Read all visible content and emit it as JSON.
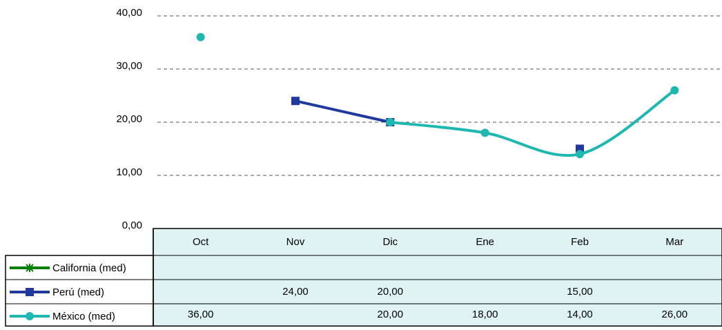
{
  "chart_data": {
    "type": "line",
    "categories": [
      "Oct",
      "Nov",
      "Dic",
      "Ene",
      "Feb",
      "Mar"
    ],
    "series": [
      {
        "name": "California (med)",
        "color": "#008000",
        "marker": "star",
        "values": [
          null,
          null,
          null,
          null,
          null,
          null
        ],
        "value_labels": [
          null,
          null,
          null,
          null,
          null,
          null
        ]
      },
      {
        "name": "Perú (med)",
        "color": "#1f3a9c",
        "marker": "square",
        "smooth": false,
        "values": [
          null,
          24,
          20,
          null,
          15,
          null
        ],
        "value_labels": [
          null,
          "24,00",
          "20,00",
          null,
          "15,00",
          null
        ]
      },
      {
        "name": "México (med)",
        "color": "#1fb8b0",
        "marker": "circle",
        "smooth": true,
        "values": [
          36,
          null,
          20,
          18,
          14,
          26
        ],
        "value_labels": [
          "36,00",
          null,
          "20,00",
          "18,00",
          "14,00",
          "26,00"
        ]
      }
    ],
    "ylim": [
      0,
      40
    ],
    "yticks": [
      {
        "value": 0,
        "label": "0,00"
      },
      {
        "value": 10,
        "label": "10,00"
      },
      {
        "value": 20,
        "label": "20,00"
      },
      {
        "value": 30,
        "label": "30,00"
      },
      {
        "value": 40,
        "label": "40,00"
      }
    ],
    "grid": true
  }
}
